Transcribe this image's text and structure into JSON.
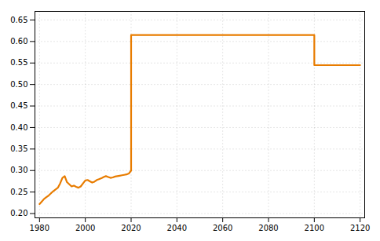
{
  "chart_data": {
    "type": "line",
    "x": [
      1980,
      1981,
      1982,
      1983,
      1984,
      1985,
      1986,
      1987,
      1988,
      1989,
      1990,
      1991,
      1992,
      1993,
      1994,
      1995,
      1996,
      1997,
      1998,
      1999,
      2000,
      2001,
      2002,
      2003,
      2004,
      2005,
      2006,
      2007,
      2008,
      2009,
      2010,
      2011,
      2012,
      2013,
      2014,
      2015,
      2016,
      2017,
      2018,
      2019,
      2020,
      2020,
      2099,
      2100,
      2100,
      2120
    ],
    "values": [
      0.222,
      0.228,
      0.234,
      0.238,
      0.242,
      0.247,
      0.252,
      0.256,
      0.26,
      0.27,
      0.283,
      0.287,
      0.273,
      0.268,
      0.263,
      0.265,
      0.262,
      0.26,
      0.263,
      0.27,
      0.277,
      0.278,
      0.275,
      0.272,
      0.274,
      0.278,
      0.28,
      0.282,
      0.285,
      0.287,
      0.285,
      0.283,
      0.284,
      0.286,
      0.287,
      0.288,
      0.289,
      0.29,
      0.291,
      0.293,
      0.3,
      0.615,
      0.615,
      0.615,
      0.545,
      0.545
    ],
    "color": "#E87C00",
    "xlim": [
      1978,
      2122
    ],
    "ylim": [
      0.19,
      0.67
    ],
    "xticks": [
      1980,
      2000,
      2020,
      2040,
      2060,
      2080,
      2100,
      2120
    ],
    "yticks": [
      {
        "value": 0.2,
        "label": "0.20"
      },
      0.25,
      {
        "value": 0.3,
        "label": "0.30"
      },
      0.35,
      {
        "value": 0.4,
        "label": "0.40"
      },
      0.45,
      {
        "value": 0.5,
        "label": "0.50"
      },
      0.55,
      {
        "value": 0.6,
        "label": "0.60"
      },
      0.65
    ],
    "grid": true
  }
}
